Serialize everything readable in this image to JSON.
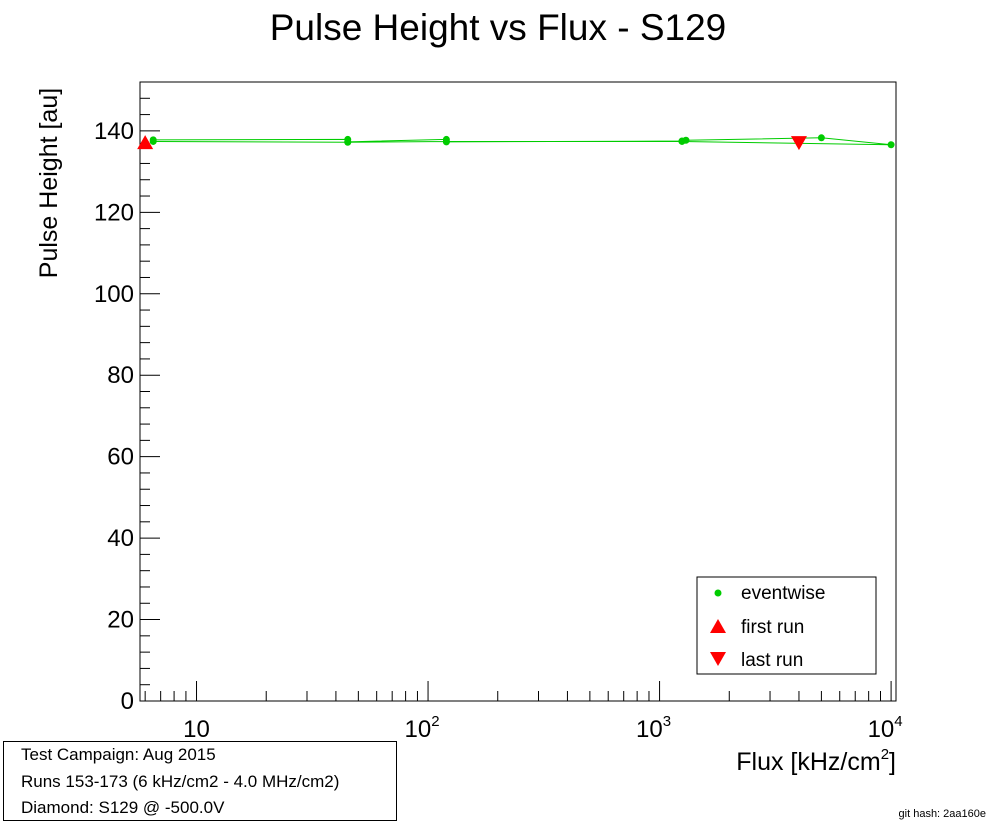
{
  "chart_data": {
    "type": "scatter",
    "title": "Pulse Height vs Flux - S129",
    "xlabel_main": "Flux [kHz/cm",
    "xlabel_sup": "2",
    "xlabel_end": "]",
    "ylabel": "Pulse Height [au]",
    "xscale": "log",
    "xlim": [
      5.7,
      10500
    ],
    "ylim": [
      0,
      152
    ],
    "y_ticks": [
      "0",
      "20",
      "40",
      "60",
      "80",
      "100",
      "120",
      "140"
    ],
    "x_ticks": [
      {
        "base": "10",
        "exp": ""
      },
      {
        "base": "10",
        "exp": "2"
      },
      {
        "base": "10",
        "exp": "3"
      },
      {
        "base": "10",
        "exp": "4"
      }
    ],
    "legend_position": "bottom-right",
    "series": [
      {
        "name": "eventwise",
        "color": "#00cc00",
        "marker": "circle",
        "connect": "line",
        "x": [
          6.5,
          45,
          45,
          120,
          120,
          1250,
          1300,
          5000,
          10000,
          1250,
          120,
          45,
          6.5
        ],
        "y": [
          137.8,
          137.9,
          137.3,
          137.9,
          137.3,
          137.5,
          137.7,
          138.3,
          136.6,
          137.4,
          137.4,
          137.2,
          137.4
        ]
      },
      {
        "name": "first run",
        "color": "#ff0000",
        "marker": "triangle-up",
        "x": [
          6.0
        ],
        "y": [
          137.0
        ]
      },
      {
        "name": "last run",
        "color": "#ff0000",
        "marker": "triangle-down",
        "x": [
          4000
        ],
        "y": [
          137.0
        ]
      }
    ]
  },
  "info": {
    "line1": "Test Campaign: Aug 2015",
    "line2": "Runs 153-173 (6 kHz/cm2 - 4.0 MHz/cm2)",
    "line3": "Diamond: S129 @ -500.0V"
  },
  "git_hash": "git hash: 2aa160e"
}
